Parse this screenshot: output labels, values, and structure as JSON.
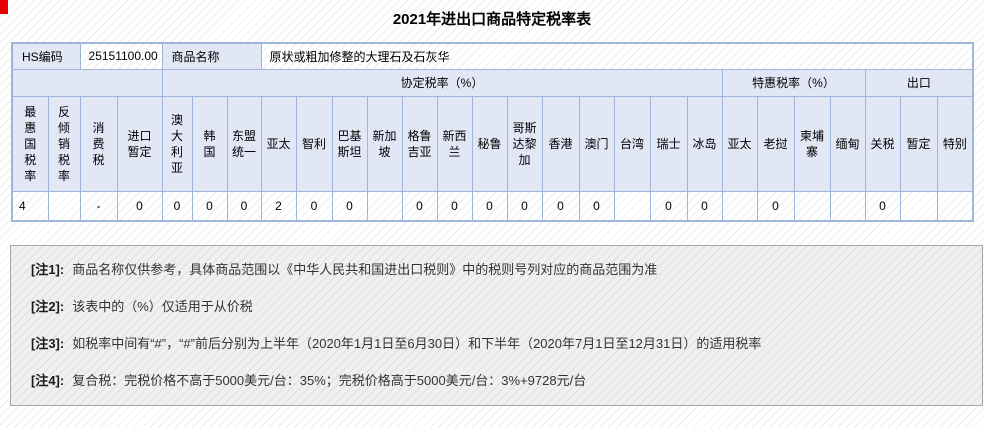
{
  "title": "2021年进出口商品特定税率表",
  "info": {
    "hs_label": "HS编码",
    "hs_code": "25151100.00",
    "name_label": "商品名称",
    "name_value": "原状或粗加修整的大理石及石灰华"
  },
  "groups": {
    "agreement": "协定税率（%）",
    "preferential": "特惠税率（%）",
    "export": "出口"
  },
  "table": {
    "columns": [
      {
        "label": "最\n惠\n国\n税\n率",
        "value": "4"
      },
      {
        "label": "反\n倾\n销\n税\n率",
        "value": ""
      },
      {
        "label": "消\n费\n税",
        "value": "-"
      },
      {
        "label": "进口\n暂定",
        "value": "0"
      },
      {
        "label": "澳\n大\n利\n亚",
        "value": "0"
      },
      {
        "label": "韩\n国",
        "value": "0"
      },
      {
        "label": "东盟\n统一",
        "value": "0"
      },
      {
        "label": "亚太",
        "value": "2"
      },
      {
        "label": "智利",
        "value": "0"
      },
      {
        "label": "巴基\n斯坦",
        "value": "0"
      },
      {
        "label": "新加\n坡",
        "value": ""
      },
      {
        "label": "格鲁\n吉亚",
        "value": "0"
      },
      {
        "label": "新西\n兰",
        "value": "0"
      },
      {
        "label": "秘鲁",
        "value": "0"
      },
      {
        "label": "哥斯\n达黎\n加",
        "value": "0"
      },
      {
        "label": "香港",
        "value": "0"
      },
      {
        "label": "澳门",
        "value": "0"
      },
      {
        "label": "台湾",
        "value": ""
      },
      {
        "label": "瑞士",
        "value": "0"
      },
      {
        "label": "冰岛",
        "value": "0"
      },
      {
        "label": "亚太",
        "value": ""
      },
      {
        "label": "老挝",
        "value": "0"
      },
      {
        "label": "柬埔\n寨",
        "value": ""
      },
      {
        "label": "缅甸",
        "value": ""
      },
      {
        "label": "关税",
        "value": "0"
      },
      {
        "label": "暂定",
        "value": ""
      },
      {
        "label": "特别",
        "value": ""
      }
    ]
  },
  "notes": [
    {
      "label": "[注1]:",
      "text": "商品名称仅供参考，具体商品范围以《中华人民共和国进出口税则》中的税则号列对应的商品范围为准"
    },
    {
      "label": "[注2]:",
      "text": "该表中的（%）仅适用于从价税"
    },
    {
      "label": "[注3]:",
      "text": "如税率中间有“#”，“#”前后分别为上半年（2020年1月1日至6月30日）和下半年（2020年7月1日至12月31日）的适用税率"
    },
    {
      "label": "[注4]:",
      "text": "复合税：完税价格不高于5000美元/台：35%；完税价格高于5000美元/台：3%+9728元/台"
    }
  ],
  "colors": {
    "table_border": "#a0b5da",
    "header_bg": "#e1e7f4",
    "notes_bg": "#ebebeb",
    "marker_red": "#e60000"
  }
}
